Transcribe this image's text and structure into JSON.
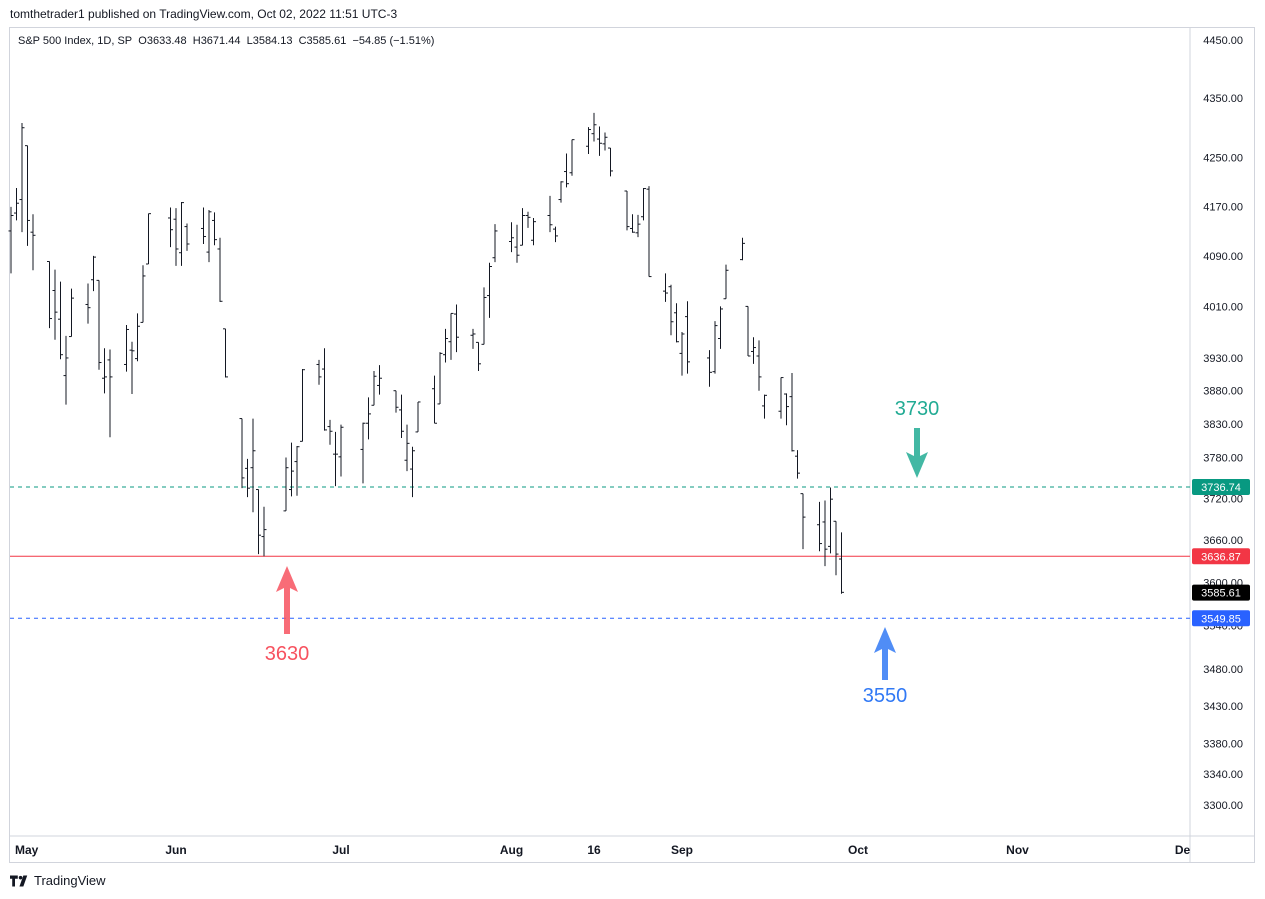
{
  "header": {
    "publisher": "tomthetrader1 published on TradingView.com, Oct 02, 2022 11:51 UTC-3"
  },
  "legend": {
    "symbol": "S&P 500 Index, 1D, SP",
    "open_label": "O",
    "open": "3633.48",
    "high_label": "H",
    "high": "3671.44",
    "low_label": "L",
    "low": "3584.13",
    "close_label": "C",
    "close": "3585.61",
    "change": "−54.85 (−1.51%)"
  },
  "footer": {
    "brand": "TradingView"
  },
  "chart_data": {
    "type": "ohlc-bar",
    "y_ticks": [
      "4450.00",
      "4350.00",
      "4250.00",
      "4170.00",
      "4090.00",
      "4010.00",
      "3930.00",
      "3880.00",
      "3830.00",
      "3780.00",
      "3720.00",
      "3660.00",
      "3600.00",
      "3540.00",
      "3480.00",
      "3430.00",
      "3380.00",
      "3340.00",
      "3300.00"
    ],
    "x_ticks": [
      {
        "label": "May",
        "date": "2022-05-02"
      },
      {
        "label": "Jun",
        "date": "2022-06-01"
      },
      {
        "label": "Jul",
        "date": "2022-07-01"
      },
      {
        "label": "Aug",
        "date": "2022-08-01"
      },
      {
        "label": "16",
        "date": "2022-08-16"
      },
      {
        "label": "Sep",
        "date": "2022-09-01"
      },
      {
        "label": "Oct",
        "date": "2022-10-03"
      },
      {
        "label": "Nov",
        "date": "2022-11-01"
      },
      {
        "label": "De",
        "date": "2022-12-01"
      }
    ],
    "horizontal_lines": [
      {
        "price": 3736.74,
        "label": "3736.74",
        "color": "#089981",
        "style": "dashed"
      },
      {
        "price": 3636.87,
        "label": "3636.87",
        "color": "#f23645",
        "style": "solid"
      },
      {
        "price": 3549.85,
        "label": "3549.85",
        "color": "#2962ff",
        "style": "dashed"
      }
    ],
    "last_price": {
      "price": 3585.61,
      "label": "3585.61",
      "color": "#000000"
    },
    "annotations": [
      {
        "text": "3730",
        "color": "#22ab94",
        "direction": "down",
        "price": 3736.74
      },
      {
        "text": "3630",
        "color": "#f7525f",
        "direction": "up",
        "price": 3636.87
      },
      {
        "text": "3550",
        "color": "#3179f5",
        "direction": "up",
        "price": 3549.85
      }
    ],
    "bars": [
      {
        "date": "2022-05-02",
        "o": 4130,
        "h": 4169,
        "l": 4062,
        "c": 4155
      },
      {
        "date": "2022-05-03",
        "o": 4159,
        "h": 4200,
        "l": 4147,
        "c": 4175
      },
      {
        "date": "2022-05-04",
        "o": 4181,
        "h": 4308,
        "l": 4128,
        "c": 4300
      },
      {
        "date": "2022-05-05",
        "o": 4270,
        "h": 4270,
        "l": 4106,
        "c": 4147
      },
      {
        "date": "2022-05-06",
        "o": 4128,
        "h": 4157,
        "l": 4067,
        "c": 4123
      },
      {
        "date": "2022-05-09",
        "o": 4081,
        "h": 4081,
        "l": 3976,
        "c": 3991
      },
      {
        "date": "2022-05-10",
        "o": 4035,
        "h": 4068,
        "l": 3958,
        "c": 4001
      },
      {
        "date": "2022-05-11",
        "o": 3990,
        "h": 4049,
        "l": 3928,
        "c": 3935
      },
      {
        "date": "2022-05-12",
        "o": 3903,
        "h": 3964,
        "l": 3859,
        "c": 3930
      },
      {
        "date": "2022-05-13",
        "o": 3963,
        "h": 4038,
        "l": 3963,
        "c": 4023
      },
      {
        "date": "2022-05-16",
        "o": 4013,
        "h": 4046,
        "l": 3983,
        "c": 4008
      },
      {
        "date": "2022-05-17",
        "o": 4052,
        "h": 4090,
        "l": 4034,
        "c": 4088
      },
      {
        "date": "2022-05-18",
        "o": 4051,
        "h": 4051,
        "l": 3912,
        "c": 3923
      },
      {
        "date": "2022-05-19",
        "o": 3899,
        "h": 3945,
        "l": 3876,
        "c": 3901
      },
      {
        "date": "2022-05-20",
        "o": 3927,
        "h": 3943,
        "l": 3810,
        "c": 3901
      },
      {
        "date": "2022-05-23",
        "o": 3920,
        "h": 3981,
        "l": 3909,
        "c": 3974
      },
      {
        "date": "2022-05-24",
        "o": 3942,
        "h": 3955,
        "l": 3875,
        "c": 3941
      },
      {
        "date": "2022-05-25",
        "o": 3929,
        "h": 3999,
        "l": 3925,
        "c": 3979
      },
      {
        "date": "2022-05-26",
        "o": 3985,
        "h": 4075,
        "l": 3985,
        "c": 4058
      },
      {
        "date": "2022-05-27",
        "o": 4077,
        "h": 4158,
        "l": 4077,
        "c": 4158
      },
      {
        "date": "2022-05-31",
        "o": 4151,
        "h": 4168,
        "l": 4104,
        "c": 4132
      },
      {
        "date": "2022-06-01",
        "o": 4149,
        "h": 4167,
        "l": 4074,
        "c": 4101
      },
      {
        "date": "2022-06-02",
        "o": 4095,
        "h": 4177,
        "l": 4074,
        "c": 4176
      },
      {
        "date": "2022-06-03",
        "o": 4137,
        "h": 4142,
        "l": 4098,
        "c": 4109
      },
      {
        "date": "2022-06-06",
        "o": 4134,
        "h": 4168,
        "l": 4109,
        "c": 4121
      },
      {
        "date": "2022-06-07",
        "o": 4096,
        "h": 4164,
        "l": 4080,
        "c": 4161
      },
      {
        "date": "2022-06-08",
        "o": 4147,
        "h": 4160,
        "l": 4107,
        "c": 4116
      },
      {
        "date": "2022-06-09",
        "o": 4101,
        "h": 4119,
        "l": 4017,
        "c": 4018
      },
      {
        "date": "2022-06-10",
        "o": 3975,
        "h": 3975,
        "l": 3900,
        "c": 3901
      },
      {
        "date": "2022-06-13",
        "o": 3838,
        "h": 3838,
        "l": 3735,
        "c": 3750
      },
      {
        "date": "2022-06-14",
        "o": 3764,
        "h": 3778,
        "l": 3722,
        "c": 3735
      },
      {
        "date": "2022-06-15",
        "o": 3765,
        "h": 3838,
        "l": 3700,
        "c": 3790
      },
      {
        "date": "2022-06-16",
        "o": 3733,
        "h": 3733,
        "l": 3640,
        "c": 3667
      },
      {
        "date": "2022-06-17",
        "o": 3665,
        "h": 3708,
        "l": 3637,
        "c": 3675
      },
      {
        "date": "2022-06-21",
        "o": 3702,
        "h": 3780,
        "l": 3702,
        "c": 3765
      },
      {
        "date": "2022-06-22",
        "o": 3733,
        "h": 3802,
        "l": 3723,
        "c": 3760
      },
      {
        "date": "2022-06-23",
        "o": 3774,
        "h": 3797,
        "l": 3724,
        "c": 3796
      },
      {
        "date": "2022-06-24",
        "o": 3804,
        "h": 3913,
        "l": 3804,
        "c": 3912
      },
      {
        "date": "2022-06-27",
        "o": 3920,
        "h": 3927,
        "l": 3889,
        "c": 3901
      },
      {
        "date": "2022-06-28",
        "o": 3913,
        "h": 3945,
        "l": 3820,
        "c": 3821
      },
      {
        "date": "2022-06-29",
        "o": 3826,
        "h": 3836,
        "l": 3799,
        "c": 3819
      },
      {
        "date": "2022-06-30",
        "o": 3785,
        "h": 3818,
        "l": 3738,
        "c": 3785
      },
      {
        "date": "2022-07-01",
        "o": 3781,
        "h": 3829,
        "l": 3752,
        "c": 3825
      },
      {
        "date": "2022-07-05",
        "o": 3792,
        "h": 3832,
        "l": 3742,
        "c": 3831
      },
      {
        "date": "2022-07-06",
        "o": 3831,
        "h": 3870,
        "l": 3807,
        "c": 3845
      },
      {
        "date": "2022-07-07",
        "o": 3858,
        "h": 3910,
        "l": 3858,
        "c": 3902
      },
      {
        "date": "2022-07-08",
        "o": 3888,
        "h": 3919,
        "l": 3874,
        "c": 3899
      },
      {
        "date": "2022-07-11",
        "o": 3880,
        "h": 3880,
        "l": 3847,
        "c": 3855
      },
      {
        "date": "2022-07-12",
        "o": 3851,
        "h": 3874,
        "l": 3809,
        "c": 3819
      },
      {
        "date": "2022-07-13",
        "o": 3776,
        "h": 3829,
        "l": 3760,
        "c": 3801
      },
      {
        "date": "2022-07-14",
        "o": 3763,
        "h": 3796,
        "l": 3722,
        "c": 3790
      },
      {
        "date": "2022-07-15",
        "o": 3818,
        "h": 3863,
        "l": 3818,
        "c": 3863
      },
      {
        "date": "2022-07-18",
        "o": 3883,
        "h": 3903,
        "l": 3831,
        "c": 3831
      },
      {
        "date": "2022-07-19",
        "o": 3860,
        "h": 3939,
        "l": 3860,
        "c": 3937
      },
      {
        "date": "2022-07-20",
        "o": 3935,
        "h": 3975,
        "l": 3923,
        "c": 3960
      },
      {
        "date": "2022-07-21",
        "o": 3955,
        "h": 3999,
        "l": 3927,
        "c": 3999
      },
      {
        "date": "2022-07-22",
        "o": 3998,
        "h": 4013,
        "l": 3939,
        "c": 3962
      },
      {
        "date": "2022-07-25",
        "o": 3965,
        "h": 3975,
        "l": 3944,
        "c": 3967
      },
      {
        "date": "2022-07-26",
        "o": 3954,
        "h": 3954,
        "l": 3910,
        "c": 3921
      },
      {
        "date": "2022-07-27",
        "o": 3951,
        "h": 4040,
        "l": 3951,
        "c": 4024
      },
      {
        "date": "2022-07-28",
        "o": 4027,
        "h": 4079,
        "l": 3992,
        "c": 4073
      },
      {
        "date": "2022-07-29",
        "o": 4087,
        "h": 4141,
        "l": 4080,
        "c": 4130
      },
      {
        "date": "2022-08-01",
        "o": 4113,
        "h": 4144,
        "l": 4096,
        "c": 4119
      },
      {
        "date": "2022-08-02",
        "o": 4104,
        "h": 4140,
        "l": 4079,
        "c": 4091
      },
      {
        "date": "2022-08-03",
        "o": 4107,
        "h": 4167,
        "l": 4107,
        "c": 4155
      },
      {
        "date": "2022-08-04",
        "o": 4155,
        "h": 4161,
        "l": 4135,
        "c": 4152
      },
      {
        "date": "2022-08-05",
        "o": 4115,
        "h": 4151,
        "l": 4107,
        "c": 4145
      },
      {
        "date": "2022-08-08",
        "o": 4155,
        "h": 4187,
        "l": 4128,
        "c": 4140
      },
      {
        "date": "2022-08-09",
        "o": 4133,
        "h": 4137,
        "l": 4112,
        "c": 4122
      },
      {
        "date": "2022-08-10",
        "o": 4181,
        "h": 4211,
        "l": 4176,
        "c": 4210
      },
      {
        "date": "2022-08-11",
        "o": 4227,
        "h": 4257,
        "l": 4201,
        "c": 4207
      },
      {
        "date": "2022-08-12",
        "o": 4225,
        "h": 4280,
        "l": 4220,
        "c": 4280
      },
      {
        "date": "2022-08-15",
        "o": 4269,
        "h": 4301,
        "l": 4256,
        "c": 4297
      },
      {
        "date": "2022-08-16",
        "o": 4290,
        "h": 4325,
        "l": 4277,
        "c": 4305
      },
      {
        "date": "2022-08-17",
        "o": 4281,
        "h": 4302,
        "l": 4253,
        "c": 4274
      },
      {
        "date": "2022-08-18",
        "o": 4273,
        "h": 4292,
        "l": 4262,
        "c": 4284
      },
      {
        "date": "2022-08-19",
        "o": 4266,
        "h": 4266,
        "l": 4219,
        "c": 4228
      },
      {
        "date": "2022-08-22",
        "o": 4195,
        "h": 4195,
        "l": 4131,
        "c": 4137
      },
      {
        "date": "2022-08-23",
        "o": 4134,
        "h": 4157,
        "l": 4127,
        "c": 4128
      },
      {
        "date": "2022-08-24",
        "o": 4127,
        "h": 4156,
        "l": 4120,
        "c": 4141
      },
      {
        "date": "2022-08-25",
        "o": 4153,
        "h": 4200,
        "l": 4147,
        "c": 4199
      },
      {
        "date": "2022-08-26",
        "o": 4198,
        "h": 4203,
        "l": 4057,
        "c": 4057
      },
      {
        "date": "2022-08-29",
        "o": 4034,
        "h": 4062,
        "l": 4017,
        "c": 4031
      },
      {
        "date": "2022-08-30",
        "o": 4041,
        "h": 4044,
        "l": 3965,
        "c": 3986
      },
      {
        "date": "2022-08-31",
        "o": 4000,
        "h": 4015,
        "l": 3954,
        "c": 3955
      },
      {
        "date": "2022-09-01",
        "o": 3937,
        "h": 3970,
        "l": 3903,
        "c": 3967
      },
      {
        "date": "2022-09-02",
        "o": 3994,
        "h": 4018,
        "l": 3906,
        "c": 3924
      },
      {
        "date": "2022-09-06",
        "o": 3930,
        "h": 3942,
        "l": 3886,
        "c": 3908
      },
      {
        "date": "2022-09-07",
        "o": 3909,
        "h": 3987,
        "l": 3906,
        "c": 3980
      },
      {
        "date": "2022-09-08",
        "o": 3960,
        "h": 4010,
        "l": 3944,
        "c": 4006
      },
      {
        "date": "2022-09-09",
        "o": 4022,
        "h": 4076,
        "l": 4022,
        "c": 4067
      },
      {
        "date": "2022-09-12",
        "o": 4084,
        "h": 4119,
        "l": 4083,
        "c": 4110
      },
      {
        "date": "2022-09-13",
        "o": 4010,
        "h": 4010,
        "l": 3933,
        "c": 3933
      },
      {
        "date": "2022-09-14",
        "o": 3940,
        "h": 3962,
        "l": 3921,
        "c": 3946
      },
      {
        "date": "2022-09-15",
        "o": 3933,
        "h": 3957,
        "l": 3880,
        "c": 3901
      },
      {
        "date": "2022-09-16",
        "o": 3857,
        "h": 3874,
        "l": 3838,
        "c": 3873
      },
      {
        "date": "2022-09-19",
        "o": 3849,
        "h": 3900,
        "l": 3838,
        "c": 3900
      },
      {
        "date": "2022-09-20",
        "o": 3875,
        "h": 3876,
        "l": 3828,
        "c": 3856
      },
      {
        "date": "2022-09-21",
        "o": 3871,
        "h": 3907,
        "l": 3789,
        "c": 3790
      },
      {
        "date": "2022-09-22",
        "o": 3782,
        "h": 3791,
        "l": 3749,
        "c": 3757
      },
      {
        "date": "2022-09-23",
        "o": 3727,
        "h": 3727,
        "l": 3647,
        "c": 3693
      },
      {
        "date": "2022-09-26",
        "o": 3682,
        "h": 3715,
        "l": 3644,
        "c": 3655
      },
      {
        "date": "2022-09-27",
        "o": 3686,
        "h": 3717,
        "l": 3623,
        "c": 3647
      },
      {
        "date": "2022-09-28",
        "o": 3651,
        "h": 3736,
        "l": 3641,
        "c": 3719
      },
      {
        "date": "2022-09-29",
        "o": 3687,
        "h": 3687,
        "l": 3610,
        "c": 3640
      },
      {
        "date": "2022-09-30",
        "o": 3633,
        "h": 3671,
        "l": 3584,
        "c": 3586
      }
    ]
  }
}
